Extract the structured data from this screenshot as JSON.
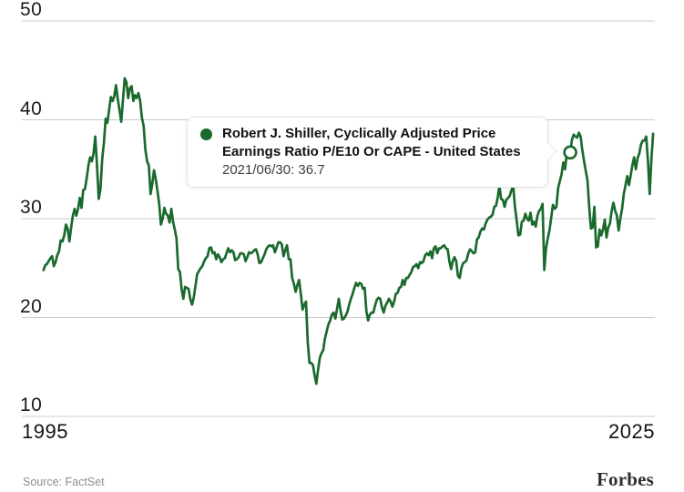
{
  "chart_data": {
    "type": "line",
    "title": "Robert J. Shiller, Cyclically Adjusted Price Earnings Ratio P/E10 Or CAPE - United States",
    "x_axis": {
      "tick_labels": [
        "1995",
        "2025"
      ],
      "range_years": [
        1995,
        2025.5
      ],
      "grid": false
    },
    "y_axis": {
      "tick_labels": [
        "50",
        "40",
        "30",
        "20",
        "10"
      ],
      "ticks": [
        50,
        40,
        30,
        20,
        10
      ],
      "range": [
        10,
        50
      ],
      "grid": true,
      "grid_position": "labels-above-lines"
    },
    "legend": "none",
    "series": [
      {
        "name": "Robert J. Shiller, Cyclically Adjusted Price Earnings Ratio P/E10 Or CAPE - United States",
        "color": "#1a692d",
        "x_start_year": 1996.0,
        "x_step_months": 1,
        "values": [
          24.8,
          25.3,
          25.4,
          25.7,
          26.0,
          26.2,
          25.2,
          25.6,
          26.3,
          26.7,
          27.8,
          27.7,
          28.3,
          29.4,
          29.0,
          27.7,
          29.1,
          30.3,
          31.0,
          30.3,
          31.0,
          32.1,
          31.1,
          32.9,
          33.0,
          34.1,
          35.4,
          36.2,
          35.8,
          36.6,
          38.3,
          35.4,
          32.0,
          33.0,
          36.0,
          37.7,
          40.1,
          39.7,
          41.0,
          42.3,
          41.9,
          42.4,
          43.5,
          42.1,
          41.0,
          39.8,
          42.0,
          44.2,
          43.8,
          42.2,
          43.2,
          43.4,
          41.9,
          42.5,
          42.2,
          42.7,
          41.9,
          40.2,
          39.4,
          37.0,
          35.8,
          35.4,
          32.5,
          33.5,
          34.9,
          34.0,
          32.8,
          31.5,
          29.4,
          30.0,
          31.1,
          30.5,
          30.3,
          29.6,
          31.0,
          29.7,
          28.9,
          28.0,
          24.9,
          24.6,
          22.9,
          21.9,
          23.1,
          23.0,
          22.9,
          21.9,
          21.3,
          22.0,
          23.2,
          24.4,
          24.7,
          25.0,
          25.2,
          25.7,
          26.0,
          26.2,
          27.0,
          27.1,
          26.5,
          26.6,
          25.9,
          26.4,
          26.1,
          25.6,
          25.9,
          26.0,
          26.5,
          27.0,
          26.6,
          26.8,
          26.6,
          25.8,
          25.9,
          26.1,
          26.5,
          26.5,
          26.4,
          25.7,
          26.1,
          26.6,
          26.5,
          26.6,
          26.8,
          26.9,
          26.4,
          25.5,
          25.6,
          26.0,
          26.4,
          26.9,
          27.2,
          27.3,
          27.2,
          27.3,
          26.6,
          27.1,
          27.6,
          27.6,
          27.4,
          26.2,
          26.8,
          27.3,
          25.9,
          25.9,
          24.0,
          23.4,
          22.6,
          23.3,
          23.8,
          22.4,
          20.8,
          21.3,
          21.6,
          17.5,
          15.4,
          15.4,
          15.2,
          14.1,
          13.3,
          14.7,
          15.9,
          16.4,
          16.7,
          17.9,
          18.6,
          19.3,
          19.7,
          20.3,
          20.5,
          19.9,
          20.9,
          21.9,
          20.7,
          19.8,
          19.9,
          20.2,
          20.6,
          21.3,
          21.9,
          22.4,
          23.0,
          23.5,
          23.2,
          23.5,
          23.4,
          22.9,
          23.0,
          20.6,
          19.7,
          20.3,
          20.5,
          20.5,
          21.2,
          21.8,
          22.0,
          21.9,
          21.0,
          20.5,
          21.2,
          21.5,
          21.9,
          21.6,
          21.1,
          21.6,
          22.4,
          22.5,
          23.0,
          23.1,
          23.8,
          23.3,
          24.0,
          24.0,
          24.3,
          24.6,
          25.1,
          25.2,
          25.4,
          25.0,
          25.6,
          25.5,
          25.7,
          26.3,
          26.5,
          26.3,
          26.7,
          26.0,
          27.0,
          27.2,
          26.5,
          27.0,
          27.0,
          27.2,
          27.3,
          27.0,
          26.9,
          25.7,
          24.9,
          25.7,
          26.1,
          25.7,
          24.2,
          24.0,
          25.0,
          25.5,
          25.6,
          25.8,
          26.5,
          26.9,
          26.7,
          26.5,
          26.6,
          27.9,
          28.1,
          28.7,
          29.0,
          28.9,
          29.5,
          29.9,
          30.1,
          30.2,
          30.4,
          31.2,
          31.3,
          32.1,
          33.3,
          32.0,
          31.9,
          31.2,
          31.9,
          32.1,
          32.3,
          32.9,
          33.3,
          31.2,
          29.8,
          28.3,
          28.4,
          29.7,
          29.8,
          30.5,
          30.0,
          29.8,
          30.6,
          29.4,
          29.7,
          29.2,
          30.3,
          30.8,
          31.0,
          31.5,
          24.8,
          27.0,
          28.0,
          28.8,
          30.1,
          31.4,
          31.0,
          31.2,
          33.1,
          33.8,
          34.5,
          35.7,
          35.0,
          36.6,
          37.1,
          36.7,
          38.0,
          38.5,
          38.3,
          38.2,
          38.7,
          38.3,
          36.9,
          35.8,
          34.8,
          33.9,
          31.2,
          29.0,
          29.1,
          31.2,
          27.1,
          27.2,
          28.9,
          28.3,
          28.9,
          29.9,
          28.1,
          29.1,
          29.5,
          30.8,
          31.6,
          30.8,
          30.3,
          28.8,
          30.0,
          31.0,
          32.5,
          33.4,
          34.3,
          33.4,
          34.4,
          35.4,
          36.2,
          35.0,
          36.1,
          36.6,
          37.5,
          37.9,
          37.9,
          38.3,
          35.9,
          32.5,
          36.0,
          38.6
        ]
      }
    ],
    "highlight": {
      "date": "2021/06/30",
      "value": 36.7,
      "x_year": 2021.4167
    }
  },
  "tooltip": {
    "title_line1": "Robert J. Shiller, Cyclically Adjusted Price",
    "title_line2": "Earnings Ratio P/E10 Or CAPE - United States",
    "value_line": "2021/06/30: 36.7"
  },
  "footer": {
    "source": "Source: FactSet",
    "brand": "Forbes"
  },
  "colors": {
    "line": "#1a692d",
    "grid": "#cccccc",
    "background": "#ffffff",
    "tooltip_border": "#e3e3e3",
    "text": "#131313",
    "muted_text": "#8e8e8e"
  }
}
